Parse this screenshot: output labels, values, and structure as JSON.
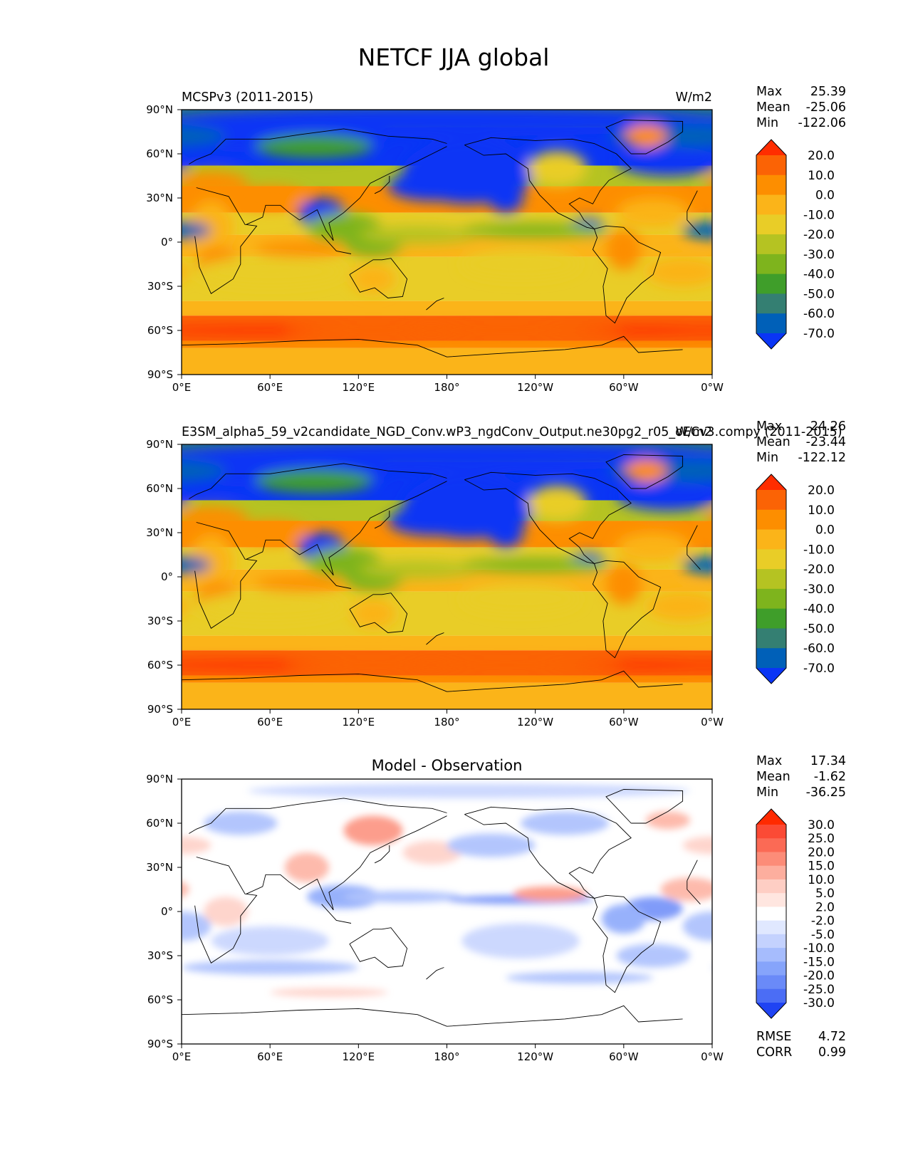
{
  "figure": {
    "title": "NETCF JJA global"
  },
  "chart_data": [
    {
      "type": "heatmap",
      "name": "panel-test",
      "title_left": "MCSPv3 (2011-2015)",
      "units": "W/m2",
      "xticks": [
        "0°E",
        "60°E",
        "120°E",
        "180°",
        "120°W",
        "60°W",
        "0°W"
      ],
      "yticks": [
        "90°N",
        "60°N",
        "30°N",
        "0°",
        "30°S",
        "60°S",
        "90°S"
      ],
      "xlim": [
        0,
        360
      ],
      "ylim": [
        -90,
        90
      ],
      "stats": [
        {
          "label": "Max",
          "value": "25.39"
        },
        {
          "label": "Mean",
          "value": "-25.06"
        },
        {
          "label": "Min",
          "value": "-122.06"
        }
      ],
      "levels": [
        "20.0",
        "10.0",
        "0.0",
        "-10.0",
        "-20.0",
        "-30.0",
        "-40.0",
        "-50.0",
        "-60.0",
        "-70.0"
      ],
      "colors": [
        "#ff2d00",
        "#fb6305",
        "#fd8e00",
        "#fbb419",
        "#e9cd27",
        "#b5c322",
        "#7eb41d",
        "#3f9e2a",
        "#347f72",
        "#0060b8",
        "#0a35f5"
      ]
    },
    {
      "type": "heatmap",
      "name": "panel-ref",
      "title_left": "E3SM_alpha5_59_v2candidate_NGD_Conv.wP3_ngdConv_Output.ne30pg2_r05_oECv3.compy (2011-2015)",
      "units": "W/m2",
      "xticks": [
        "0°E",
        "60°E",
        "120°E",
        "180°",
        "120°W",
        "60°W",
        "0°W"
      ],
      "yticks": [
        "90°N",
        "60°N",
        "30°N",
        "0°",
        "30°S",
        "60°S",
        "90°S"
      ],
      "xlim": [
        0,
        360
      ],
      "ylim": [
        -90,
        90
      ],
      "stats": [
        {
          "label": "Max",
          "value": "24.26"
        },
        {
          "label": "Mean",
          "value": "-23.44"
        },
        {
          "label": "Min",
          "value": "-122.12"
        }
      ],
      "levels": [
        "20.0",
        "10.0",
        "0.0",
        "-10.0",
        "-20.0",
        "-30.0",
        "-40.0",
        "-50.0",
        "-60.0",
        "-70.0"
      ],
      "colors": [
        "#ff2d00",
        "#fb6305",
        "#fd8e00",
        "#fbb419",
        "#e9cd27",
        "#b5c322",
        "#7eb41d",
        "#3f9e2a",
        "#347f72",
        "#0060b8",
        "#0a35f5"
      ]
    },
    {
      "type": "heatmap",
      "name": "panel-diff",
      "title_center": "Model - Observation",
      "xticks": [
        "0°E",
        "60°E",
        "120°E",
        "180°",
        "120°W",
        "60°W",
        "0°W"
      ],
      "yticks": [
        "90°N",
        "60°N",
        "30°N",
        "0°",
        "30°S",
        "60°S",
        "90°S"
      ],
      "xlim": [
        0,
        360
      ],
      "ylim": [
        -90,
        90
      ],
      "stats": [
        {
          "label": "Max",
          "value": "17.34"
        },
        {
          "label": "Mean",
          "value": "-1.62"
        },
        {
          "label": "Min",
          "value": "-36.25"
        }
      ],
      "metrics": [
        {
          "label": "RMSE",
          "value": "4.72"
        },
        {
          "label": "CORR",
          "value": "0.99"
        }
      ],
      "levels": [
        "30.0",
        "25.0",
        "20.0",
        "15.0",
        "10.0",
        "5.0",
        "2.0",
        "-2.0",
        "-5.0",
        "-10.0",
        "-15.0",
        "-20.0",
        "-25.0",
        "-30.0"
      ],
      "colors": [
        "#ff2a00",
        "#fb4a35",
        "#fb6a55",
        "#fc8c78",
        "#fdae9e",
        "#fecec4",
        "#ffe6e0",
        "#ffffff",
        "#e0e8ff",
        "#c4d2fe",
        "#a6bcfd",
        "#86a4fb",
        "#6a8af8",
        "#4b6df5",
        "#1f43f3"
      ]
    }
  ]
}
